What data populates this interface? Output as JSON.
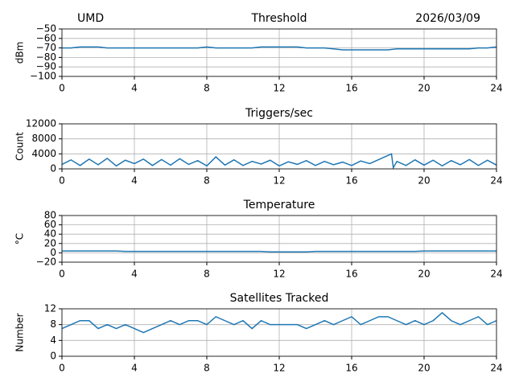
{
  "chart_data": [
    {
      "type": "line",
      "title": "Threshold",
      "annotations": [
        "UMD",
        "2026/03/09"
      ],
      "ylabel": "dBm",
      "color": "#1f77b4",
      "grid": true,
      "xlim": [
        0,
        24
      ],
      "xticks": [
        0,
        4,
        8,
        12,
        16,
        20,
        24
      ],
      "ylim": [
        -100,
        -50
      ],
      "yticks": [
        {
          "value": -100,
          "label": "−100"
        },
        {
          "value": -90,
          "label": "−90"
        },
        {
          "value": -80,
          "label": "−80"
        },
        {
          "value": -70,
          "label": "−70"
        },
        {
          "value": -60,
          "label": "−60"
        },
        {
          "value": -50,
          "label": "−50"
        }
      ],
      "x": [
        0,
        0.5,
        1,
        1.5,
        2,
        2.5,
        3,
        3.5,
        4,
        4.5,
        5,
        5.5,
        6,
        6.5,
        7,
        7.5,
        8,
        8.5,
        9,
        9.5,
        10,
        10.5,
        11,
        11.5,
        12,
        12.5,
        13,
        13.5,
        14,
        14.5,
        15,
        15.5,
        16,
        16.5,
        17,
        17.5,
        18,
        18.5,
        19,
        19.5,
        20,
        20.5,
        21,
        21.5,
        22,
        22.5,
        23,
        23.5,
        24
      ],
      "values": [
        -70,
        -70,
        -69,
        -69,
        -69,
        -70,
        -70,
        -70,
        -70,
        -70,
        -70,
        -70,
        -70,
        -70,
        -70,
        -70,
        -69,
        -70,
        -70,
        -70,
        -70,
        -70,
        -69,
        -69,
        -69,
        -69,
        -69,
        -70,
        -70,
        -70,
        -71,
        -72,
        -72,
        -72,
        -72,
        -72,
        -72,
        -71,
        -71,
        -71,
        -71,
        -71,
        -71,
        -71,
        -71,
        -71,
        -70,
        -70,
        -69
      ]
    },
    {
      "type": "line",
      "title": "Triggers/sec",
      "ylabel": "Count",
      "color": "#1f77b4",
      "grid": true,
      "xlim": [
        0,
        24
      ],
      "xticks": [
        0,
        4,
        8,
        12,
        16,
        20,
        24
      ],
      "ylim": [
        0,
        12000
      ],
      "yticks": [
        0,
        4000,
        8000,
        12000
      ],
      "x": [
        0,
        0.5,
        1,
        1.5,
        2,
        2.5,
        3,
        3.5,
        4,
        4.5,
        5,
        5.5,
        6,
        6.5,
        7,
        7.5,
        8,
        8.5,
        9,
        9.5,
        10,
        10.5,
        11,
        11.5,
        12,
        12.5,
        13,
        13.5,
        14,
        14.5,
        15,
        15.5,
        16,
        16.5,
        17,
        18.2,
        18.3,
        18.5,
        19,
        19.5,
        20,
        20.5,
        21,
        21.5,
        22,
        22.5,
        23,
        23.5,
        24
      ],
      "values": [
        1200,
        2400,
        900,
        2600,
        1100,
        2800,
        800,
        2300,
        1400,
        2600,
        900,
        2500,
        1000,
        2700,
        1200,
        2200,
        800,
        3200,
        1000,
        2400,
        900,
        2000,
        1300,
        2300,
        800,
        1900,
        1200,
        2200,
        900,
        2000,
        1100,
        1800,
        900,
        2100,
        1400,
        4000,
        300,
        2000,
        900,
        2400,
        1000,
        2300,
        800,
        2200,
        1100,
        2500,
        900,
        2300,
        1000
      ]
    },
    {
      "type": "line",
      "title": "Temperature",
      "ylabel": "°C",
      "color": "#1f77b4",
      "grid": true,
      "xlim": [
        0,
        24
      ],
      "xticks": [
        0,
        4,
        8,
        12,
        16,
        20,
        24
      ],
      "ylim": [
        -20,
        80
      ],
      "yticks": [
        {
          "value": -20,
          "label": "−20"
        },
        0,
        20,
        40,
        60,
        80
      ],
      "x": [
        0,
        0.5,
        1,
        1.5,
        2,
        2.5,
        3,
        3.5,
        4,
        4.5,
        5,
        5.5,
        6,
        6.5,
        7,
        7.5,
        8,
        8.5,
        9,
        9.5,
        10,
        10.5,
        11,
        11.5,
        12,
        12.5,
        13,
        13.5,
        14,
        14.5,
        15,
        15.5,
        16,
        16.5,
        17,
        17.5,
        18,
        18.5,
        19,
        19.5,
        20,
        20.5,
        21,
        21.5,
        22,
        22.5,
        23,
        23.5,
        24
      ],
      "values": [
        4,
        4,
        4,
        4,
        4,
        4,
        4,
        3,
        3,
        3,
        3,
        3,
        3,
        3,
        3,
        3,
        3,
        3,
        3,
        3,
        3,
        3,
        3,
        2,
        2,
        2,
        2,
        2,
        3,
        3,
        3,
        3,
        3,
        3,
        3,
        3,
        3,
        3,
        3,
        3,
        4,
        4,
        4,
        4,
        4,
        4,
        4,
        4,
        4
      ]
    },
    {
      "type": "line",
      "title": "Satellites Tracked",
      "ylabel": "Number",
      "color": "#1f77b4",
      "grid": true,
      "xlim": [
        0,
        24
      ],
      "xticks": [
        0,
        4,
        8,
        12,
        16,
        20,
        24
      ],
      "ylim": [
        0,
        12
      ],
      "yticks": [
        0,
        4,
        8,
        12
      ],
      "x": [
        0,
        0.5,
        1,
        1.5,
        2,
        2.5,
        3,
        3.5,
        4,
        4.5,
        5,
        5.5,
        6,
        6.5,
        7,
        7.5,
        8,
        8.5,
        9,
        9.5,
        10,
        10.5,
        11,
        11.5,
        12,
        12.5,
        13,
        13.5,
        14,
        14.5,
        15,
        15.5,
        16,
        16.5,
        17,
        17.5,
        18,
        18.5,
        19,
        19.5,
        20,
        20.5,
        21,
        21.5,
        22,
        22.5,
        23,
        23.5,
        24
      ],
      "values": [
        7,
        8,
        9,
        9,
        7,
        8,
        7,
        8,
        7,
        6,
        7,
        8,
        9,
        8,
        9,
        9,
        8,
        10,
        9,
        8,
        9,
        7,
        9,
        8,
        8,
        8,
        8,
        7,
        8,
        9,
        8,
        9,
        10,
        8,
        9,
        10,
        10,
        9,
        8,
        9,
        8,
        9,
        11,
        9,
        8,
        9,
        10,
        8,
        9
      ]
    }
  ]
}
